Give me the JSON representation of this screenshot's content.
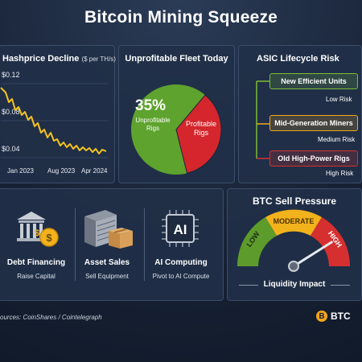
{
  "title": "Bitcoin Mining Squeeze",
  "hashprice": {
    "title_main": "Hashprice Decline",
    "title_unit": "($ per TH/s)",
    "y_labels": [
      "$0.12",
      "$0.08",
      "$0.04"
    ],
    "x_labels": [
      "Jan 2023",
      "Aug 2023",
      "Apr 2024"
    ],
    "line_color": "#f4c21f"
  },
  "fleet": {
    "title": "Unprofitable Fleet Today",
    "percent": "35%",
    "unprofitable_label": "Unprofitable Rigs",
    "profitable_label": "Profitable Rigs",
    "unprofitable_share": 0.35,
    "colors": {
      "unprofitable": "#d4262c",
      "profitable": "#5ea32e"
    }
  },
  "asic": {
    "title": "ASIC Lifecycle Risk",
    "tiers": [
      {
        "name": "New Efficient Units",
        "risk": "Low Risk",
        "color": "#7cbd35"
      },
      {
        "name": "Mid-Generation Miners",
        "risk": "Medium Risk",
        "color": "#f0a81c"
      },
      {
        "name": "Old High-Power Rigs",
        "risk": "High Risk",
        "color": "#d63131"
      }
    ]
  },
  "strategies": [
    {
      "label": "Debt Financing",
      "sub": "Raise Capital",
      "icon": "bank-coin-icon"
    },
    {
      "label": "Asset Sales",
      "sub": "Sell Equipment",
      "icon": "server-box-icon"
    },
    {
      "label": "AI Computing",
      "sub": "Pivot to AI Compute",
      "icon": "ai-chip-icon"
    }
  ],
  "gauge": {
    "title": "BTC Sell Pressure",
    "low": "LOW",
    "moderate": "MODERATE",
    "high": "HIGH",
    "caption": "Liquidity Impact",
    "level": 0.82
  },
  "footer": {
    "sources": "ources: CoinShares / Cointelegraph",
    "badge": "BTC",
    "coin_glyph": "B"
  }
}
